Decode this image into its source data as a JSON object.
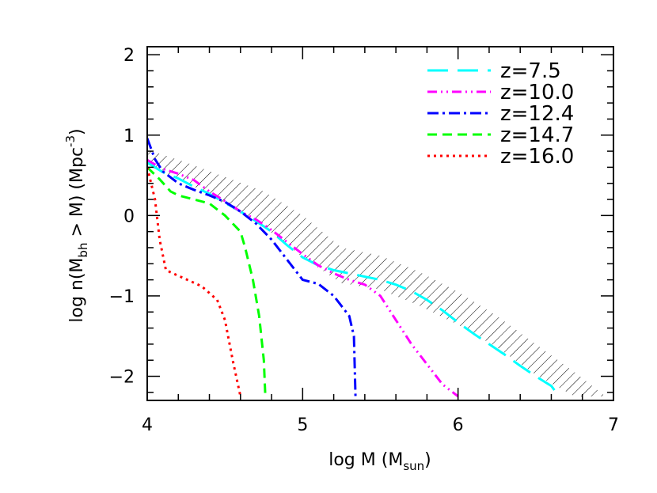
{
  "chart_data": {
    "type": "line",
    "title": "",
    "xlabel": {
      "main": "log M (M",
      "sub": "sun",
      "end": ")"
    },
    "ylabel": {
      "main": "log n(M",
      "sub": "bh",
      "mid": " > M)  (Mpc",
      "sup": "-3",
      "end": ")"
    },
    "xlim": [
      4,
      7
    ],
    "ylim": [
      -2.3,
      2.1
    ],
    "xticks": [
      4,
      5,
      6,
      7
    ],
    "xtick_labels": [
      "4",
      "5",
      "6",
      "7"
    ],
    "yticks": [
      -2,
      -1,
      0,
      1,
      2
    ],
    "ytick_labels": [
      "−2",
      "−1",
      "0",
      "1",
      "2"
    ],
    "grid": false,
    "legend_position": "top-right",
    "series": [
      {
        "name": "z=7.5",
        "color": "#00ffff",
        "dash": "long-dash",
        "x": [
          4.0,
          4.1,
          4.2,
          4.3,
          4.4,
          4.5,
          4.6,
          4.7,
          4.8,
          4.9,
          5.0,
          5.1,
          5.2,
          5.3,
          5.4,
          5.5,
          5.6,
          5.7,
          5.8,
          5.9,
          6.0,
          6.1,
          6.2,
          6.3,
          6.4,
          6.5,
          6.6,
          6.65
        ],
        "y": [
          0.66,
          0.54,
          0.46,
          0.36,
          0.27,
          0.16,
          0.05,
          -0.07,
          -0.2,
          -0.37,
          -0.52,
          -0.62,
          -0.68,
          -0.72,
          -0.76,
          -0.8,
          -0.86,
          -0.94,
          -1.05,
          -1.18,
          -1.33,
          -1.47,
          -1.6,
          -1.73,
          -1.87,
          -2.0,
          -2.12,
          -2.25
        ]
      },
      {
        "name": "z=10.0",
        "color": "#ff00ff",
        "dash": "dash-dot-dot",
        "x": [
          4.0,
          4.1,
          4.2,
          4.3,
          4.4,
          4.5,
          4.6,
          4.7,
          4.8,
          4.9,
          5.0,
          5.1,
          5.2,
          5.3,
          5.4,
          5.5,
          5.6,
          5.7,
          5.8,
          5.9,
          6.0
        ],
        "y": [
          0.69,
          0.58,
          0.52,
          0.44,
          0.3,
          0.18,
          0.05,
          -0.05,
          -0.18,
          -0.33,
          -0.48,
          -0.62,
          -0.72,
          -0.8,
          -0.86,
          -1.0,
          -1.3,
          -1.6,
          -1.85,
          -2.1,
          -2.25
        ]
      },
      {
        "name": "z=12.4",
        "color": "#0000ff",
        "dash": "dash-dot",
        "x": [
          4.0,
          4.05,
          4.1,
          4.2,
          4.3,
          4.4,
          4.5,
          4.6,
          4.7,
          4.8,
          4.9,
          5.0,
          5.1,
          5.2,
          5.3,
          5.33,
          5.34
        ],
        "y": [
          0.96,
          0.7,
          0.55,
          0.4,
          0.32,
          0.25,
          0.17,
          0.05,
          -0.1,
          -0.3,
          -0.55,
          -0.8,
          -0.85,
          -1.0,
          -1.25,
          -1.5,
          -2.25
        ]
      },
      {
        "name": "z=14.7",
        "color": "#00ff00",
        "dash": "dash",
        "x": [
          4.0,
          4.08,
          4.15,
          4.2,
          4.3,
          4.4,
          4.5,
          4.6,
          4.63,
          4.68,
          4.72,
          4.75,
          4.76
        ],
        "y": [
          0.6,
          0.45,
          0.3,
          0.25,
          0.2,
          0.15,
          0.0,
          -0.2,
          -0.4,
          -0.8,
          -1.25,
          -1.8,
          -2.25
        ]
      },
      {
        "name": "z=16.0",
        "color": "#ff0000",
        "dash": "dot",
        "x": [
          4.0,
          4.05,
          4.08,
          4.12,
          4.2,
          4.35,
          4.45,
          4.5,
          4.55,
          4.6
        ],
        "y": [
          0.6,
          0.2,
          -0.3,
          -0.68,
          -0.75,
          -0.88,
          -1.05,
          -1.3,
          -1.8,
          -2.25
        ]
      }
    ],
    "shaded_band": {
      "x": [
        4.0,
        4.25,
        4.5,
        4.75,
        5.0,
        5.25,
        5.5,
        5.75,
        6.0,
        6.25,
        6.5,
        6.75,
        6.95
      ],
      "y_upper": [
        0.82,
        0.66,
        0.48,
        0.3,
        0.0,
        -0.4,
        -0.5,
        -0.7,
        -0.95,
        -1.25,
        -1.6,
        -1.95,
        -2.25
      ],
      "y_lower": [
        0.62,
        0.42,
        0.14,
        -0.14,
        -0.52,
        -0.84,
        -0.92,
        -1.12,
        -1.36,
        -1.64,
        -1.98,
        -2.25,
        -2.25
      ]
    }
  }
}
